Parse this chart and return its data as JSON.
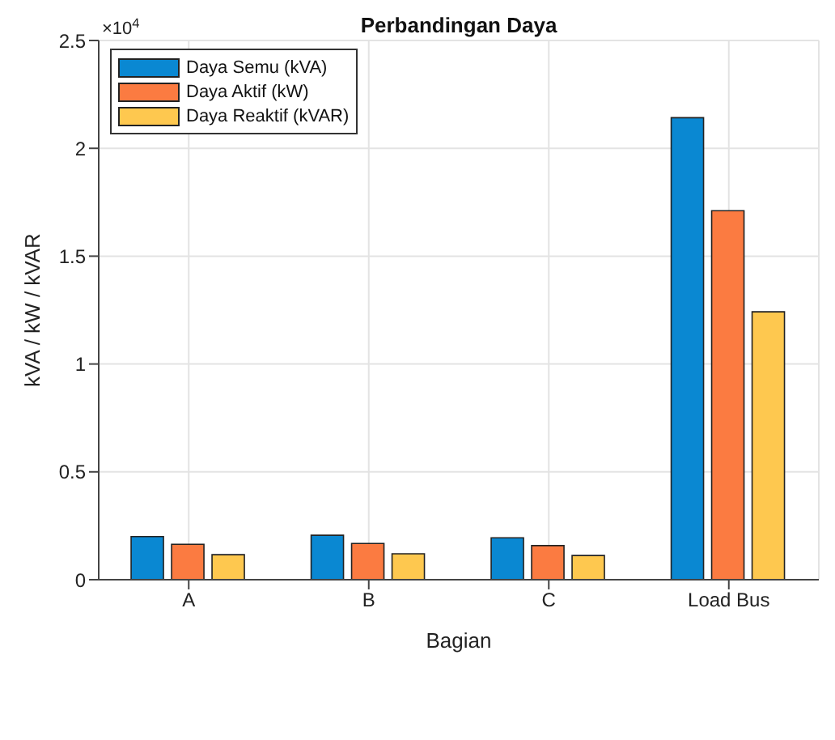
{
  "chart_data": {
    "type": "bar",
    "title": "Perbandingan Daya",
    "xlabel": "Bagian",
    "ylabel": "kVA / kW / kVAR",
    "annotations": [
      "×10$^{4}$"
    ],
    "categories": [
      "A",
      "B",
      "C",
      "Load Bus"
    ],
    "series": [
      {
        "name": "Daya Semu (kVA)",
        "color": "#0a88d2",
        "values": [
          0.2,
          0.206,
          0.194,
          2.142
        ]
      },
      {
        "name": "Daya Aktif (kW)",
        "color": "#fb7b41",
        "values": [
          0.164,
          0.168,
          0.158,
          1.711
        ]
      },
      {
        "name": "Daya Reaktif (kVAR)",
        "color": "#fec84f",
        "values": [
          0.116,
          0.12,
          0.112,
          1.242
        ]
      }
    ],
    "ylim": [
      0,
      2.5
    ],
    "yticks": [
      0,
      0.5,
      1,
      1.5,
      2,
      2.5
    ],
    "grid": true,
    "legend": "top left"
  }
}
